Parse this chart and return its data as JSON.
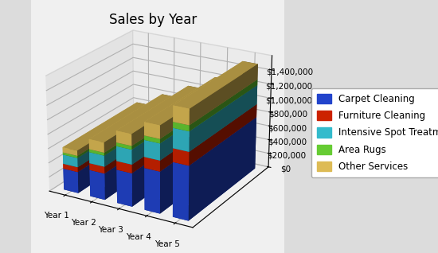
{
  "title": "Sales by Year",
  "categories": [
    "Year 1",
    "Year 2",
    "Year 3",
    "Year 4",
    "Year 5"
  ],
  "series": {
    "Carpet Cleaning": [
      300000,
      370000,
      465000,
      580000,
      750000
    ],
    "Furniture Cleaning": [
      68000,
      95000,
      120000,
      150000,
      185000
    ],
    "Intensive Spot Treatment": [
      130000,
      155000,
      205000,
      230000,
      270000
    ],
    "Area Rugs": [
      30000,
      40000,
      50000,
      60000,
      80000
    ],
    "Other Services": [
      72000,
      140000,
      160000,
      180000,
      215000
    ]
  },
  "colors": {
    "Carpet Cleaning": "#2244cc",
    "Furniture Cleaning": "#cc2200",
    "Intensive Spot Treatment": "#33bbcc",
    "Area Rugs": "#66cc33",
    "Other Services": "#ddbb55"
  },
  "ylim": [
    0,
    1600000
  ],
  "yticks": [
    0,
    200000,
    400000,
    600000,
    800000,
    1000000,
    1200000,
    1400000
  ],
  "background_color": "#dcdcdc",
  "plot_background": "#f0f0f0",
  "title_fontsize": 12,
  "legend_fontsize": 8.5,
  "tick_fontsize": 7.5,
  "elev": 22,
  "azim": -60,
  "bar_width": 0.55,
  "bar_depth": 0.35
}
